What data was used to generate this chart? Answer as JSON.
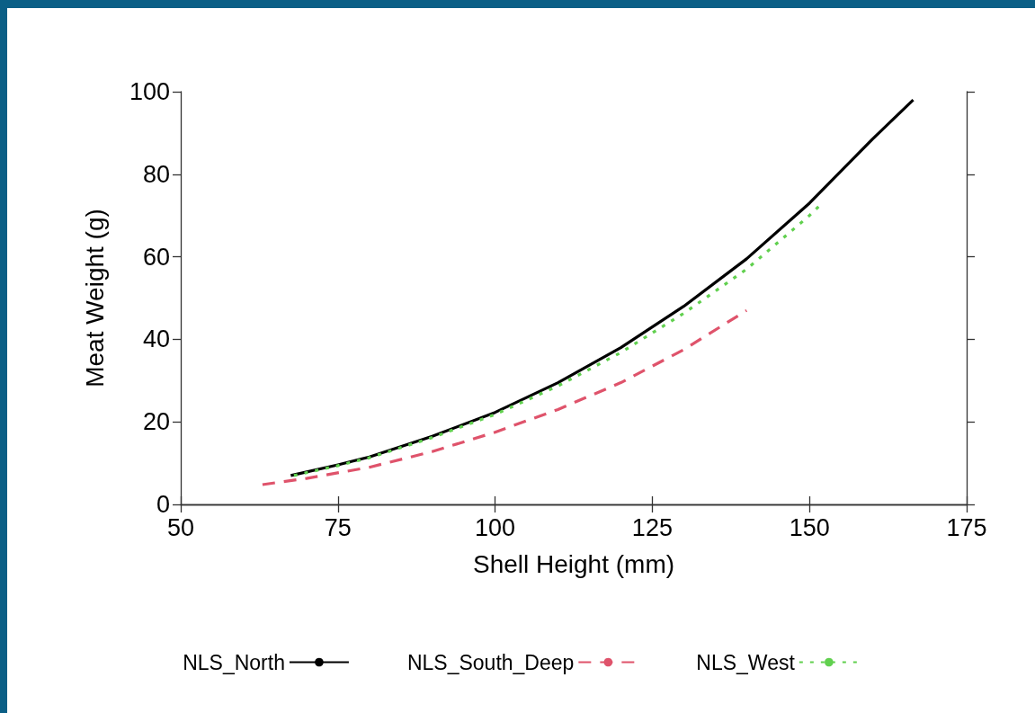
{
  "chart_data": {
    "type": "line",
    "xlabel": "Shell Height (mm)",
    "ylabel": "Meat Weight (g)",
    "xlim": [
      50,
      175
    ],
    "xticks": [
      50,
      75,
      100,
      125,
      150,
      175
    ],
    "ylim": [
      0,
      100
    ],
    "yticks": [
      0,
      20,
      40,
      60,
      80,
      100
    ],
    "grid": false,
    "legend": "bottom",
    "marker": "none",
    "series": [
      {
        "name": "NLS_North",
        "color": "#000000",
        "line_style": "solid",
        "x": [
          67.5,
          75,
          80,
          90,
          100,
          110,
          120,
          130,
          140,
          150,
          160,
          166.5
        ],
        "values": [
          7,
          9.6,
          11.5,
          16.5,
          22.3,
          29.5,
          38,
          48,
          59.5,
          73,
          88.5,
          98
        ]
      },
      {
        "name": "NLS_South_Deep",
        "color": "#df536b",
        "line_style": "dashed",
        "x": [
          63,
          70,
          80,
          90,
          100,
          110,
          120,
          130,
          140
        ],
        "values": [
          4.8,
          6.3,
          9,
          12.8,
          17.5,
          23,
          29.5,
          37.5,
          47
        ]
      },
      {
        "name": "NLS_West",
        "color": "#61d04f",
        "line_style": "dotted",
        "x": [
          68,
          75,
          80,
          90,
          100,
          110,
          120,
          130,
          140,
          150,
          152
        ],
        "values": [
          7,
          9.4,
          11.3,
          16.2,
          21.8,
          28.7,
          36.8,
          46.3,
          57,
          70,
          73
        ]
      }
    ]
  }
}
